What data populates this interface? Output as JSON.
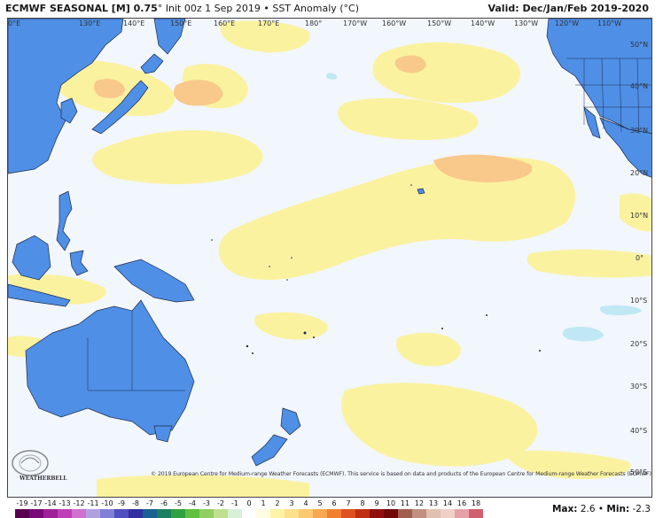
{
  "header": {
    "model": "ECMWF SEASONAL [M] 0.75",
    "degree": "°",
    "init": "Init 00z 1 Sep 2019",
    "sep": "•",
    "field": "SST Anomaly (°C)",
    "valid_label": "Valid:",
    "valid_value": "Dec/Jan/Feb 2019-2020"
  },
  "map": {
    "longitude_labels": [
      "0°E",
      "130°E",
      "140°E",
      "150°E",
      "160°E",
      "170°E",
      "180°",
      "170°W",
      "160°W",
      "150°W",
      "140°W",
      "130°W",
      "120°W",
      "110°W"
    ],
    "latitude_labels": [
      "50°N",
      "40°N",
      "30°N",
      "20°N",
      "10°N",
      "0°",
      "10°S",
      "20°S",
      "30°S",
      "40°S",
      "50°S"
    ],
    "land_color": "#4f8fe6",
    "ocean_color": "#f2f6fd",
    "warm_anomaly_color": "#fbf2a0",
    "warmer_anomaly_color": "#f8c98b",
    "cool_anomaly_color": "#bfe8f4"
  },
  "footer": {
    "copyright": "© 2019 European Centre for Medium-range Weather Forecasts (ECMWF). This service is based on data and products of the European Centre for Medium-range Weather Forecasts (ECMWF).",
    "logo_text": "WEATHERBELL"
  },
  "legend": {
    "ticks": [
      "-19",
      "-17",
      "-14",
      "-13",
      "-12",
      "-11",
      "-10",
      "-9",
      "-8",
      "-7",
      "-6",
      "-5",
      "-4",
      "-3",
      "-2",
      "-1",
      "0",
      "1",
      "2",
      "3",
      "4",
      "5",
      "6",
      "7",
      "8",
      "9",
      "10",
      "11",
      "12",
      "13",
      "14",
      "16",
      "18"
    ],
    "colors": [
      "#5a0050",
      "#7a0a78",
      "#a0209a",
      "#c040b8",
      "#d070d0",
      "#b0a0e0",
      "#8080d8",
      "#5050c0",
      "#3030a0",
      "#1a6090",
      "#1a8060",
      "#30a040",
      "#60c040",
      "#90d060",
      "#c0e090",
      "#d8f0d8",
      "#ffffff",
      "#fffbe0",
      "#fff3a8",
      "#fde08a",
      "#fcc870",
      "#f8a850",
      "#f08030",
      "#e05020",
      "#c03010",
      "#901010",
      "#700808",
      "#a06050",
      "#c09080",
      "#e0c0b0",
      "#f0d0c8",
      "#e8a0a8",
      "#d06070"
    ],
    "max_label": "Max:",
    "max_value": "2.6",
    "min_label": "Min:",
    "min_value": "-2.3",
    "sep": "•"
  }
}
